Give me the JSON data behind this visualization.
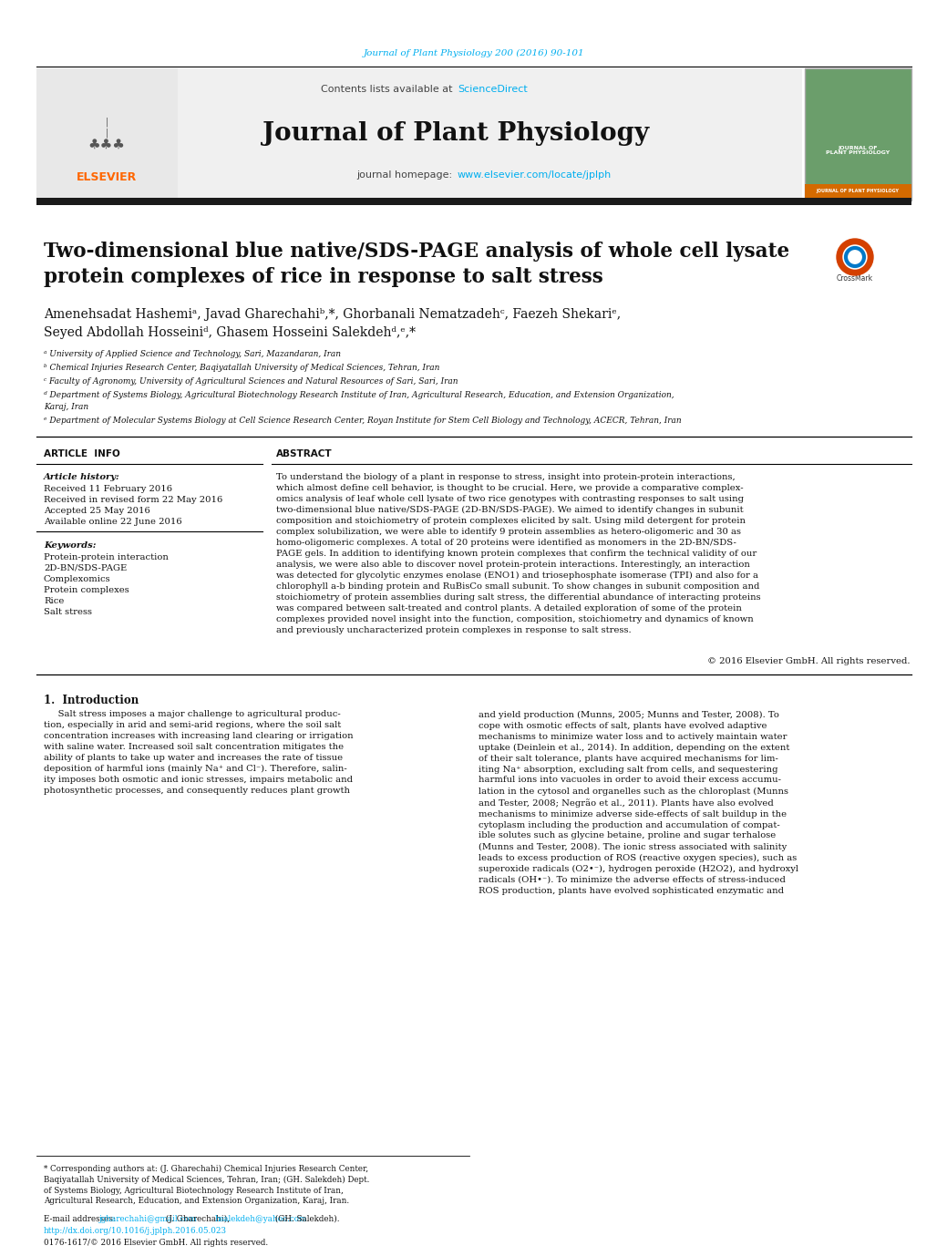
{
  "journal_ref": "Journal of Plant Physiology 200 (2016) 90-101",
  "journal_ref_color": "#00AEEF",
  "contents_text": "Contents lists available at ",
  "sciencedirect_text": "ScienceDirect",
  "sciencedirect_color": "#00AEEF",
  "journal_name": "Journal of Plant Physiology",
  "homepage_text": "journal homepage: ",
  "homepage_url": "www.elsevier.com/locate/jplph",
  "homepage_url_color": "#00AEEF",
  "article_title": "Two-dimensional blue native/SDS-PAGE analysis of whole cell lysate\nprotein complexes of rice in response to salt stress",
  "affiliation_a": "ᵃ University of Applied Science and Technology, Sari, Mazandaran, Iran",
  "affiliation_b": "ᵇ Chemical Injuries Research Center, Baqiyatallah University of Medical Sciences, Tehran, Iran",
  "affiliation_c": "ᶜ Faculty of Agronomy, University of Agricultural Sciences and Natural Resources of Sari, Sari, Iran",
  "affiliation_d1": "ᵈ Department of Systems Biology, Agricultural Biotechnology Research Institute of Iran, Agricultural Research, Education, and Extension Organization,",
  "affiliation_d2": "Karaj, Iran",
  "affiliation_e": "ᵉ Department of Molecular Systems Biology at Cell Science Research Center, Royan Institute for Stem Cell Biology and Technology, ACECR, Tehran, Iran",
  "article_info_title": "ARTICLE  INFO",
  "abstract_title": "ABSTRACT",
  "article_history_label": "Article history:",
  "received1": "Received 11 February 2016",
  "received2": "Received in revised form 22 May 2016",
  "accepted": "Accepted 25 May 2016",
  "available": "Available online 22 June 2016",
  "keywords_label": "Keywords:",
  "keywords": [
    "Protein-protein interaction",
    "2D-BN/SDS-PAGE",
    "Complexomics",
    "Protein complexes",
    "Rice",
    "Salt stress"
  ],
  "abstract_text": "To understand the biology of a plant in response to stress, insight into protein-protein interactions,\nwhich almost define cell behavior, is thought to be crucial. Here, we provide a comparative complex-\nomics analysis of leaf whole cell lysate of two rice genotypes with contrasting responses to salt using\ntwo-dimensional blue native/SDS-PAGE (2D-BN/SDS-PAGE). We aimed to identify changes in subunit\ncomposition and stoichiometry of protein complexes elicited by salt. Using mild detergent for protein\ncomplex solubilization, we were able to identify 9 protein assemblies as hetero-oligomeric and 30 as\nhomo-oligomeric complexes. A total of 20 proteins were identified as monomers in the 2D-BN/SDS-\nPAGE gels. In addition to identifying known protein complexes that confirm the technical validity of our\nanalysis, we were also able to discover novel protein-protein interactions. Interestingly, an interaction\nwas detected for glycolytic enzymes enolase (ENO1) and triosephosphate isomerase (TPI) and also for a\nchlorophyll a-b binding protein and RuBisCo small subunit. To show changes in subunit composition and\nstoichiometry of protein assemblies during salt stress, the differential abundance of interacting proteins\nwas compared between salt-treated and control plants. A detailed exploration of some of the protein\ncomplexes provided novel insight into the function, composition, stoichiometry and dynamics of known\nand previously uncharacterized protein complexes in response to salt stress.",
  "copyright": "© 2016 Elsevier GmbH. All rights reserved.",
  "intro_title": "1.  Introduction",
  "intro_col1": "     Salt stress imposes a major challenge to agricultural produc-\ntion, especially in arid and semi-arid regions, where the soil salt\nconcentration increases with increasing land clearing or irrigation\nwith saline water. Increased soil salt concentration mitigates the\nability of plants to take up water and increases the rate of tissue\ndeposition of harmful ions (mainly Na⁺ and Cl⁻). Therefore, salin-\nity imposes both osmotic and ionic stresses, impairs metabolic and\nphotosynthetic processes, and consequently reduces plant growth",
  "intro_col2": "and yield production (Munns, 2005; Munns and Tester, 2008). To\ncope with osmotic effects of salt, plants have evolved adaptive\nmechanisms to minimize water loss and to actively maintain water\nuptake (Deinlein et al., 2014). In addition, depending on the extent\nof their salt tolerance, plants have acquired mechanisms for lim-\niting Na⁺ absorption, excluding salt from cells, and sequestering\nharmful ions into vacuoles in order to avoid their excess accumu-\nlation in the cytosol and organelles such as the chloroplast (Munns\nand Tester, 2008; Negrão et al., 2011). Plants have also evolved\nmechanisms to minimize adverse side-effects of salt buildup in the\ncytoplasm including the production and accumulation of compat-\nible solutes such as glycine betaine, proline and sugar terhalose\n(Munns and Tester, 2008). The ionic stress associated with salinity\nleads to excess production of ROS (reactive oxygen species), such as\nsuperoxide radicals (O2•⁻), hydrogen peroxide (H2O2), and hydroxyl\nradicals (OH•⁻). To minimize the adverse effects of stress-induced\nROS production, plants have evolved sophisticated enzymatic and",
  "footnote_corresponding": "* Corresponding authors at: (J. Gharechahi) Chemical Injuries Research Center,\nBaqiyatallah University of Medical Sciences, Tehran, Iran; (GH. Salekdeh) Dept.\nof Systems Biology, Agricultural Biotechnology Research Institute of Iran,\nAgricultural Research, Education, and Extension Organization, Karaj, Iran.",
  "footnote_email_label": "E-mail addresses: ",
  "footnote_email1": "jgharechahi@gmail.com",
  "footnote_email1_color": "#00AEEF",
  "footnote_email_mid": " (J. Gharechahi),",
  "footnote_email2": "hsalekdeh@yahoo.com",
  "footnote_email2_color": "#00AEEF",
  "footnote_email_end": " (GH. Salekdeh).",
  "doi_text": "http://dx.doi.org/10.1016/j.jplph.2016.05.023",
  "doi_color": "#00AEEF",
  "issn_text": "0176-1617/© 2016 Elsevier GmbH. All rights reserved.",
  "bg_color": "#FFFFFF",
  "black_bar_color": "#1A1A1A",
  "text_color": "#000000",
  "link_color": "#00AEEF"
}
